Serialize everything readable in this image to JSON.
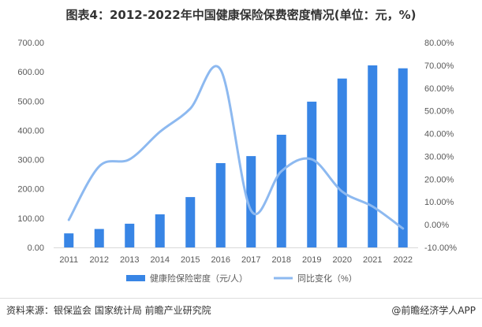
{
  "title": "图表4：2012-2022年中国健康保险保费密度情况(单位：元，%)",
  "chart_data": {
    "type": "bar+line",
    "categories": [
      "2011",
      "2012",
      "2013",
      "2014",
      "2015",
      "2016",
      "2017",
      "2018",
      "2019",
      "2020",
      "2021",
      "2022"
    ],
    "series": [
      {
        "name": "健康险保险密度（元/人）",
        "type": "bar",
        "axis": "left",
        "color": "#3885E5",
        "values": [
          48,
          63,
          81,
          113,
          172,
          288,
          312,
          385,
          498,
          577,
          622,
          612
        ]
      },
      {
        "name": "同比变化（%）",
        "type": "line",
        "axis": "right",
        "color": "#8DB9F0",
        "values": [
          2.1,
          25.6,
          28.7,
          40.8,
          51.0,
          68.0,
          6.2,
          23.5,
          28.7,
          14.5,
          8.0,
          -1.7
        ]
      }
    ],
    "left_axis": {
      "ylim": [
        0,
        700
      ],
      "ticks": [
        "0.00",
        "100.00",
        "200.00",
        "300.00",
        "400.00",
        "500.00",
        "600.00",
        "700.00"
      ]
    },
    "right_axis": {
      "ylim": [
        -10,
        80
      ],
      "ticks": [
        "-10.00%",
        "0.00%",
        "10.00%",
        "20.00%",
        "30.00%",
        "40.00%",
        "50.00%",
        "60.00%",
        "70.00%",
        "80.00%"
      ]
    },
    "grid": false,
    "legend": "bottom"
  },
  "footer": {
    "source": "资料来源：银保监会 国家统计局 前瞻产业研究院",
    "brand": "@前瞻经济学人APP"
  }
}
